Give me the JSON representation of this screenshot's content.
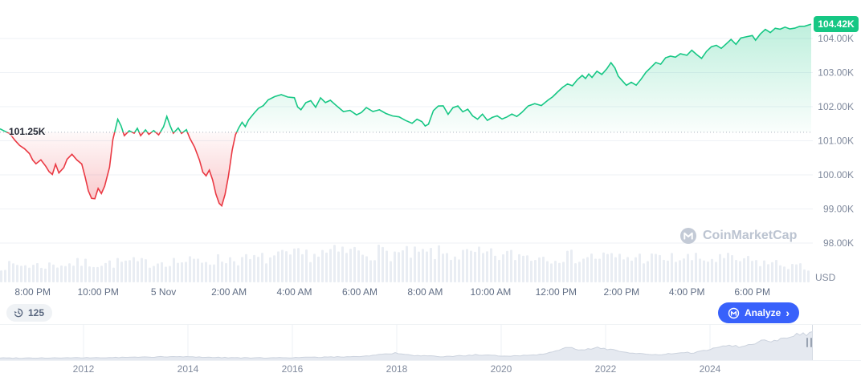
{
  "chart": {
    "current_price_label": "104.42K",
    "baseline_label": "101.25K",
    "watermark": "CoinMarketCap"
  },
  "toolbar": {
    "history_count": "125",
    "analyze_label": "Analyze",
    "analyze_chevron": "›"
  },
  "chart_data": {
    "type": "line",
    "baseline_value": 101.25,
    "current_value": 104.42,
    "colors": {
      "up": "#16c784",
      "down": "#ea3943",
      "baseline": "#a9b2bf",
      "accent": "#3861fb",
      "axis_text": "#808a9d"
    },
    "y_axis": {
      "ticks": [
        104,
        103,
        102,
        101,
        100,
        99,
        98
      ],
      "tick_labels": [
        "104.00K",
        "103.00K",
        "102.00K",
        "101.00K",
        "100.00K",
        "99.00K",
        "98.00K"
      ],
      "unit": "USD"
    },
    "x_domain_hours": [
      0,
      24.85
    ],
    "x_ticks": [
      {
        "h": 1,
        "label": "8:00 PM"
      },
      {
        "h": 3,
        "label": "10:00 PM"
      },
      {
        "h": 5,
        "label": "5 Nov"
      },
      {
        "h": 7,
        "label": "2:00 AM"
      },
      {
        "h": 9,
        "label": "4:00 AM"
      },
      {
        "h": 11,
        "label": "6:00 AM"
      },
      {
        "h": 13,
        "label": "8:00 AM"
      },
      {
        "h": 15,
        "label": "10:00 AM"
      },
      {
        "h": 17,
        "label": "12:00 PM"
      },
      {
        "h": 19,
        "label": "2:00 PM"
      },
      {
        "h": 21,
        "label": "4:00 PM"
      },
      {
        "h": 23,
        "label": "6:00 PM"
      }
    ],
    "series": [
      [
        0,
        101.35
      ],
      [
        0.15,
        101.3
      ],
      [
        0.3,
        101.2
      ],
      [
        0.45,
        101.0
      ],
      [
        0.6,
        100.85
      ],
      [
        0.75,
        100.75
      ],
      [
        0.9,
        100.6
      ],
      [
        1.0,
        100.45
      ],
      [
        1.1,
        100.3
      ],
      [
        1.25,
        100.45
      ],
      [
        1.4,
        100.25
      ],
      [
        1.5,
        100.1
      ],
      [
        1.6,
        100.0
      ],
      [
        1.7,
        100.3
      ],
      [
        1.8,
        100.05
      ],
      [
        1.95,
        100.2
      ],
      [
        2.05,
        100.45
      ],
      [
        2.2,
        100.6
      ],
      [
        2.35,
        100.45
      ],
      [
        2.5,
        100.3
      ],
      [
        2.6,
        99.95
      ],
      [
        2.7,
        99.55
      ],
      [
        2.8,
        99.3
      ],
      [
        2.9,
        99.3
      ],
      [
        3.0,
        99.6
      ],
      [
        3.1,
        99.45
      ],
      [
        3.2,
        99.65
      ],
      [
        3.35,
        100.2
      ],
      [
        3.45,
        101.05
      ],
      [
        3.6,
        101.65
      ],
      [
        3.7,
        101.45
      ],
      [
        3.8,
        101.15
      ],
      [
        3.95,
        101.3
      ],
      [
        4.1,
        101.2
      ],
      [
        4.2,
        101.35
      ],
      [
        4.3,
        101.15
      ],
      [
        4.45,
        101.3
      ],
      [
        4.55,
        101.2
      ],
      [
        4.7,
        101.3
      ],
      [
        4.85,
        101.15
      ],
      [
        5.0,
        101.4
      ],
      [
        5.1,
        101.7
      ],
      [
        5.2,
        101.45
      ],
      [
        5.3,
        101.2
      ],
      [
        5.45,
        101.35
      ],
      [
        5.55,
        101.2
      ],
      [
        5.7,
        101.35
      ],
      [
        5.8,
        101.1
      ],
      [
        5.95,
        100.8
      ],
      [
        6.1,
        100.45
      ],
      [
        6.2,
        100.1
      ],
      [
        6.3,
        99.95
      ],
      [
        6.4,
        100.15
      ],
      [
        6.5,
        99.85
      ],
      [
        6.6,
        99.45
      ],
      [
        6.7,
        99.15
      ],
      [
        6.78,
        99.08
      ],
      [
        6.88,
        99.45
      ],
      [
        6.98,
        99.95
      ],
      [
        7.1,
        100.7
      ],
      [
        7.2,
        101.2
      ],
      [
        7.3,
        101.4
      ],
      [
        7.4,
        101.55
      ],
      [
        7.5,
        101.4
      ],
      [
        7.6,
        101.6
      ],
      [
        7.75,
        101.8
      ],
      [
        7.9,
        101.95
      ],
      [
        8.05,
        102.05
      ],
      [
        8.2,
        102.2
      ],
      [
        8.4,
        102.3
      ],
      [
        8.6,
        102.35
      ],
      [
        8.8,
        102.3
      ],
      [
        9.0,
        102.25
      ],
      [
        9.1,
        102.0
      ],
      [
        9.2,
        101.9
      ],
      [
        9.35,
        102.1
      ],
      [
        9.5,
        102.2
      ],
      [
        9.65,
        102.0
      ],
      [
        9.8,
        102.25
      ],
      [
        9.95,
        102.1
      ],
      [
        10.1,
        102.2
      ],
      [
        10.3,
        102.0
      ],
      [
        10.5,
        101.85
      ],
      [
        10.7,
        101.9
      ],
      [
        10.9,
        101.78
      ],
      [
        11.05,
        101.85
      ],
      [
        11.2,
        101.95
      ],
      [
        11.4,
        101.85
      ],
      [
        11.6,
        101.92
      ],
      [
        11.8,
        101.8
      ],
      [
        12.0,
        101.75
      ],
      [
        12.2,
        101.7
      ],
      [
        12.4,
        101.6
      ],
      [
        12.6,
        101.5
      ],
      [
        12.75,
        101.65
      ],
      [
        12.9,
        101.55
      ],
      [
        13.0,
        101.45
      ],
      [
        13.1,
        101.5
      ],
      [
        13.25,
        101.9
      ],
      [
        13.4,
        102.0
      ],
      [
        13.55,
        102.05
      ],
      [
        13.7,
        101.8
      ],
      [
        13.85,
        101.95
      ],
      [
        14.0,
        102.0
      ],
      [
        14.15,
        101.85
      ],
      [
        14.3,
        101.92
      ],
      [
        14.45,
        101.72
      ],
      [
        14.6,
        101.65
      ],
      [
        14.75,
        101.78
      ],
      [
        14.9,
        101.62
      ],
      [
        15.05,
        101.68
      ],
      [
        15.2,
        101.72
      ],
      [
        15.35,
        101.62
      ],
      [
        15.5,
        101.72
      ],
      [
        15.65,
        101.78
      ],
      [
        15.8,
        101.72
      ],
      [
        15.95,
        101.85
      ],
      [
        16.15,
        102.0
      ],
      [
        16.35,
        102.1
      ],
      [
        16.55,
        102.05
      ],
      [
        16.75,
        102.2
      ],
      [
        16.9,
        102.3
      ],
      [
        17.05,
        102.42
      ],
      [
        17.2,
        102.55
      ],
      [
        17.35,
        102.65
      ],
      [
        17.5,
        102.6
      ],
      [
        17.65,
        102.78
      ],
      [
        17.8,
        102.9
      ],
      [
        17.9,
        102.82
      ],
      [
        18.0,
        102.95
      ],
      [
        18.1,
        102.85
      ],
      [
        18.25,
        103.05
      ],
      [
        18.4,
        102.95
      ],
      [
        18.55,
        103.1
      ],
      [
        18.68,
        103.3
      ],
      [
        18.8,
        103.15
      ],
      [
        18.9,
        102.9
      ],
      [
        19.0,
        102.78
      ],
      [
        19.15,
        102.62
      ],
      [
        19.3,
        102.72
      ],
      [
        19.45,
        102.62
      ],
      [
        19.6,
        102.82
      ],
      [
        19.75,
        103.0
      ],
      [
        19.9,
        103.15
      ],
      [
        20.05,
        103.3
      ],
      [
        20.2,
        103.25
      ],
      [
        20.35,
        103.42
      ],
      [
        20.5,
        103.5
      ],
      [
        20.65,
        103.45
      ],
      [
        20.8,
        103.55
      ],
      [
        21.0,
        103.5
      ],
      [
        21.15,
        103.65
      ],
      [
        21.3,
        103.55
      ],
      [
        21.45,
        103.42
      ],
      [
        21.6,
        103.6
      ],
      [
        21.75,
        103.75
      ],
      [
        21.9,
        103.8
      ],
      [
        22.05,
        103.7
      ],
      [
        22.2,
        103.85
      ],
      [
        22.35,
        103.95
      ],
      [
        22.5,
        103.85
      ],
      [
        22.65,
        104.0
      ],
      [
        22.8,
        104.05
      ],
      [
        23.0,
        104.1
      ],
      [
        23.1,
        103.95
      ],
      [
        23.25,
        104.15
      ],
      [
        23.4,
        104.25
      ],
      [
        23.55,
        104.15
      ],
      [
        23.7,
        104.3
      ],
      [
        23.85,
        104.25
      ],
      [
        24.0,
        104.35
      ],
      [
        24.15,
        104.28
      ],
      [
        24.3,
        104.32
      ],
      [
        24.45,
        104.38
      ],
      [
        24.6,
        104.35
      ],
      [
        24.8,
        104.42
      ]
    ],
    "volume_profile": [
      0.42,
      0.45,
      0.43,
      0.47,
      0.5,
      0.48,
      0.52,
      0.5,
      0.55,
      0.53,
      0.57,
      0.6,
      0.58,
      0.63,
      0.68,
      0.72,
      0.75,
      0.8,
      0.78,
      0.74,
      0.72,
      0.75,
      0.7,
      0.72,
      0.68,
      0.7,
      0.66,
      0.68,
      0.64,
      0.66,
      0.62,
      0.64,
      0.6,
      0.62,
      0.58,
      0.6,
      0.55,
      0.5,
      0.45,
      0.35
    ],
    "navigator": {
      "years": [
        "2012",
        "2014",
        "2016",
        "2018",
        "2020",
        "2022",
        "2024"
      ],
      "points": [
        [
          2010.4,
          0.02
        ],
        [
          2011.5,
          0.02
        ],
        [
          2012.5,
          0.03
        ],
        [
          2013.2,
          0.05
        ],
        [
          2013.9,
          0.06
        ],
        [
          2014.5,
          0.04
        ],
        [
          2015.2,
          0.02
        ],
        [
          2016.0,
          0.03
        ],
        [
          2016.8,
          0.05
        ],
        [
          2017.4,
          0.08
        ],
        [
          2017.95,
          0.18
        ],
        [
          2018.3,
          0.1
        ],
        [
          2018.9,
          0.06
        ],
        [
          2019.5,
          0.12
        ],
        [
          2019.9,
          0.09
        ],
        [
          2020.3,
          0.09
        ],
        [
          2020.8,
          0.14
        ],
        [
          2021.05,
          0.28
        ],
        [
          2021.3,
          0.36
        ],
        [
          2021.55,
          0.26
        ],
        [
          2021.85,
          0.37
        ],
        [
          2022.1,
          0.3
        ],
        [
          2022.5,
          0.17
        ],
        [
          2022.95,
          0.12
        ],
        [
          2023.3,
          0.16
        ],
        [
          2023.7,
          0.2
        ],
        [
          2023.95,
          0.27
        ],
        [
          2024.15,
          0.4
        ],
        [
          2024.4,
          0.44
        ],
        [
          2024.6,
          0.38
        ],
        [
          2024.85,
          0.5
        ],
        [
          2025.0,
          0.6
        ],
        [
          2025.15,
          0.55
        ],
        [
          2025.35,
          0.66
        ],
        [
          2025.55,
          0.74
        ],
        [
          2025.7,
          0.84
        ],
        [
          2025.82,
          0.78
        ],
        [
          2025.97,
          0.9
        ]
      ]
    }
  }
}
